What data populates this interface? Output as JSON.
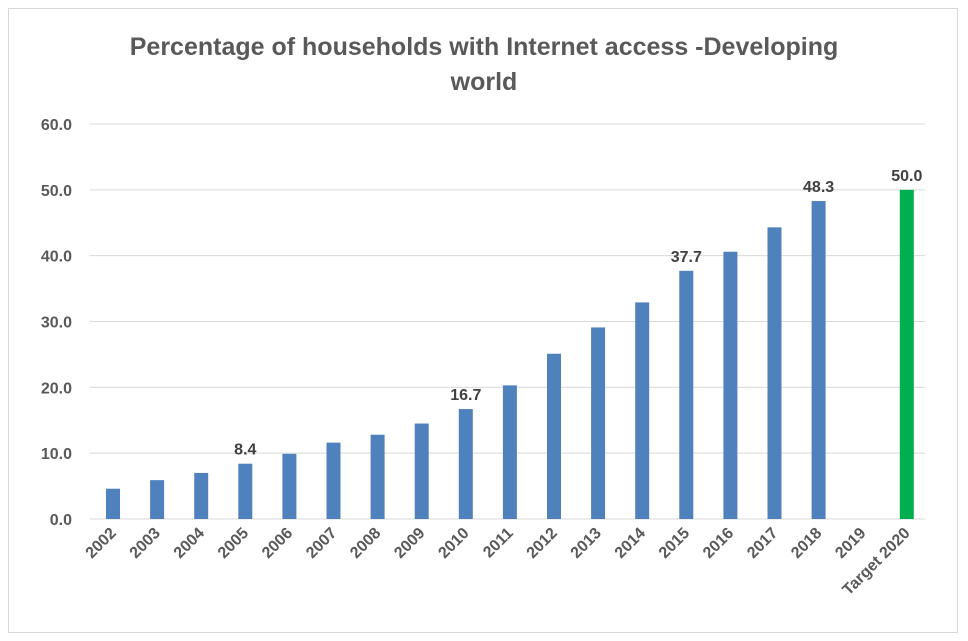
{
  "chart_data": {
    "type": "bar",
    "title_line1": "Percentage of households with Internet access -Developing",
    "title_line2": "world",
    "xlabel": "",
    "ylabel": "",
    "ylim": [
      0,
      60
    ],
    "yticks": [
      "0.0",
      "10.0",
      "20.0",
      "30.0",
      "40.0",
      "50.0",
      "60.0"
    ],
    "grid": true,
    "categories": [
      "2002",
      "2003",
      "2004",
      "2005",
      "2006",
      "2007",
      "2008",
      "2009",
      "2010",
      "2011",
      "2012",
      "2013",
      "2014",
      "2015",
      "2016",
      "2017",
      "2018",
      "2019",
      "Target 2020"
    ],
    "values": [
      4.6,
      5.9,
      7.0,
      8.4,
      9.9,
      11.6,
      12.8,
      14.5,
      16.7,
      20.3,
      25.1,
      29.1,
      32.9,
      37.7,
      40.6,
      44.3,
      48.3,
      null,
      50.0
    ],
    "data_labels": {
      "2005": "8.4",
      "2010": "16.7",
      "2015": "37.7",
      "2018": "48.3",
      "Target 2020": "50.0"
    },
    "colors": {
      "bar": "#4f81bd",
      "target": "#00b050",
      "grid": "#d9d9d9"
    }
  }
}
